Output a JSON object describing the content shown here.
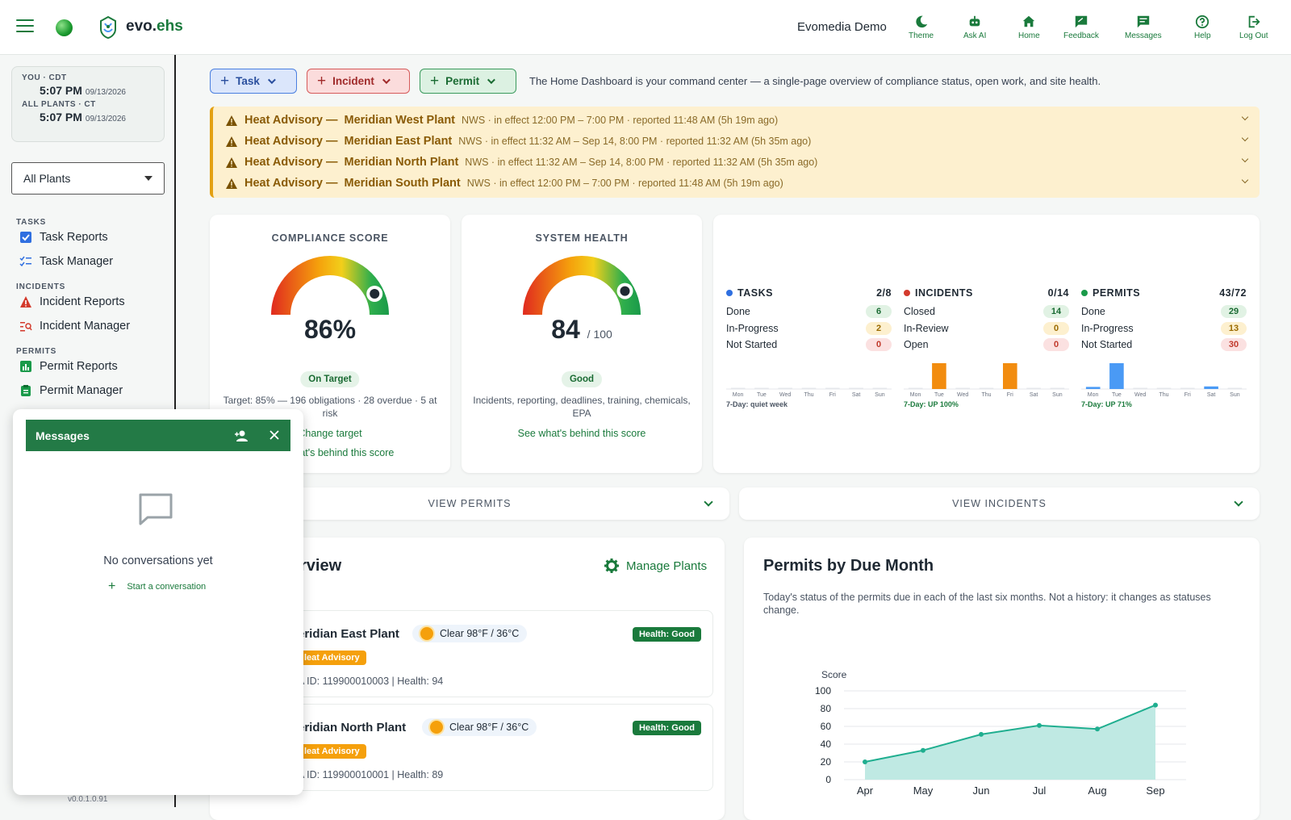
{
  "header": {
    "brand_prefix": "evo.",
    "brand_suffix": "ehs",
    "org_name": "Evomedia Demo",
    "nav": [
      {
        "label": "Theme",
        "icon": "moon-icon"
      },
      {
        "label": "Ask AI",
        "icon": "robot-icon"
      },
      {
        "label": "Home",
        "icon": "home-icon"
      },
      {
        "label": "Feedback",
        "icon": "feedback-icon"
      },
      {
        "label": "Messages",
        "icon": "chat-icon"
      },
      {
        "label": "Help",
        "icon": "help-icon"
      },
      {
        "label": "Log Out",
        "icon": "logout-icon"
      }
    ]
  },
  "sidebar": {
    "clocks": [
      {
        "label": "YOU · CDT",
        "time": "5:07 PM",
        "date": "09/13/2026"
      },
      {
        "label": "ALL PLANTS · CT",
        "time": "5:07 PM",
        "date": "09/13/2026"
      }
    ],
    "plant_select": "All Plants",
    "sections": {
      "tasks": "TASKS",
      "incidents": "INCIDENTS",
      "permits": "PERMITS"
    },
    "items": {
      "task_reports": "Task Reports",
      "task_manager": "Task Manager",
      "incident_reports": "Incident Reports",
      "incident_manager": "Incident Manager",
      "permit_reports": "Permit Reports",
      "permit_manager": "Permit Manager"
    },
    "version": "v0.0.1.0.91"
  },
  "actions": {
    "task": "Task",
    "incident": "Incident",
    "permit": "Permit",
    "intro": "The Home Dashboard is your command center — a single-page overview of compliance status, open work, and site health."
  },
  "advisories": [
    {
      "title": "Heat Advisory —",
      "plant": "Meridian West Plant",
      "detail": "NWS · in effect 12:00 PM – 7:00 PM · reported 11:48 AM (5h 19m ago)"
    },
    {
      "title": "Heat Advisory —",
      "plant": "Meridian East Plant",
      "detail": "NWS · in effect 11:32 AM – Sep 14, 8:00 PM · reported 11:32 AM (5h 35m ago)"
    },
    {
      "title": "Heat Advisory —",
      "plant": "Meridian North Plant",
      "detail": "NWS · in effect 11:32 AM – Sep 14, 8:00 PM · reported 11:32 AM (5h 35m ago)"
    },
    {
      "title": "Heat Advisory —",
      "plant": "Meridian South Plant",
      "detail": "NWS · in effect 12:00 PM – 7:00 PM · reported 11:48 AM (5h 19m ago)"
    }
  ],
  "compliance": {
    "title": "COMPLIANCE SCORE",
    "value": "86%",
    "gauge_fraction": 0.86,
    "status": "On Target",
    "detail": "Target: 85% — 196 obligations · 28 overdue · 5 at risk",
    "change_link": "Change target",
    "behind_link": "See what's behind this score"
  },
  "health": {
    "title": "SYSTEM HEALTH",
    "value": "84",
    "of": "/ 100",
    "gauge_fraction": 0.84,
    "status": "Good",
    "detail": "Incidents, reporting, deadlines, training, chemicals, EPA",
    "behind_link": "See what's behind this score"
  },
  "summary": [
    {
      "title": "TASKS",
      "ratio": "2/8",
      "color": "#2f6fe0",
      "rows": [
        {
          "label": "Done",
          "count": "6",
          "tone": "g"
        },
        {
          "label": "In-Progress",
          "count": "2",
          "tone": "y"
        },
        {
          "label": "Not Started",
          "count": "0",
          "tone": "r"
        }
      ],
      "days": [
        "Mon",
        "Tue",
        "Wed",
        "Thu",
        "Fri",
        "Sat",
        "Sun"
      ],
      "bars": [
        0,
        0,
        0,
        0,
        0,
        0,
        0
      ],
      "bar_color": "#f28c0f",
      "trend": "7-Day: quiet week",
      "trend_color": "#4b5563"
    },
    {
      "title": "INCIDENTS",
      "ratio": "0/14",
      "color": "#d33a2c",
      "rows": [
        {
          "label": "Closed",
          "count": "14",
          "tone": "g"
        },
        {
          "label": "In-Review",
          "count": "0",
          "tone": "y"
        },
        {
          "label": "Open",
          "count": "0",
          "tone": "r"
        }
      ],
      "days": [
        "Mon",
        "Tue",
        "Wed",
        "Thu",
        "Fri",
        "Sat",
        "Sun"
      ],
      "bars": [
        0,
        1,
        0,
        0,
        1,
        0,
        0
      ],
      "bar_color": "#f28c0f",
      "trend": "7-Day: UP 100%",
      "trend_color": "#1a7a3c"
    },
    {
      "title": "PERMITS",
      "ratio": "43/72",
      "color": "#1a9a4a",
      "rows": [
        {
          "label": "Done",
          "count": "29",
          "tone": "g"
        },
        {
          "label": "In-Progress",
          "count": "13",
          "tone": "y"
        },
        {
          "label": "Not Started",
          "count": "30",
          "tone": "r"
        }
      ],
      "days": [
        "Mon",
        "Tue",
        "Wed",
        "Thu",
        "Fri",
        "Sat",
        "Sun"
      ],
      "bars": [
        0.08,
        1,
        0,
        0,
        0,
        0.1,
        0
      ],
      "bar_color": "#4a9af5",
      "trend": "7-Day: UP 71%",
      "trend_color": "#1a7a3c"
    }
  ],
  "view_permits": "VIEW PERMITS",
  "view_incidents": "VIEW INCIDENTS",
  "overview": {
    "title_tail": "rview",
    "manage": "Manage Plants",
    "plants": [
      {
        "name": "eridian East Plant",
        "weather": "Clear 98°F / 36°C",
        "alert": "leat Advisory",
        "meta": "A ID: 119900010003 | Health: 94",
        "health": "Health: Good"
      },
      {
        "name": "eridian North Plant",
        "weather": "Clear 98°F / 36°C",
        "alert": "leat Advisory",
        "meta": "A ID: 119900010001 | Health: 89",
        "health": "Health: Good"
      }
    ]
  },
  "chart_data": {
    "type": "area",
    "title": "Permits by Due Month",
    "subtitle": "Today's status of the permits due in each of the last six months. Not a history: it changes as statuses change.",
    "xlabel": "",
    "ylabel": "Score",
    "categories": [
      "Apr",
      "May",
      "Jun",
      "Jul",
      "Aug",
      "Sep"
    ],
    "values": [
      20,
      33,
      51,
      61,
      57,
      84
    ],
    "yticks": [
      0,
      20,
      40,
      60,
      80,
      100
    ],
    "ylim": [
      0,
      100
    ],
    "grid": true,
    "color": "#1fae8f"
  },
  "messages": {
    "title": "Messages",
    "empty": "No conversations yet",
    "start": "Start a conversation"
  }
}
